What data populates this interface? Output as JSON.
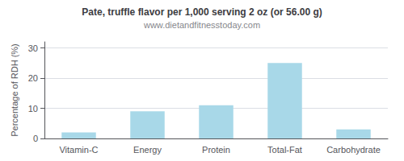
{
  "chart_data": {
    "type": "bar",
    "title": "Pate, truffle flavor per 1,000 serving 2 oz (or 56.00 g)",
    "subtitle": "www.dietandfitnesstoday.com",
    "categories": [
      "Vitamin-C",
      "Energy",
      "Protein",
      "Total-Fat",
      "Carbohydrate"
    ],
    "values": [
      2,
      9,
      11,
      25,
      3
    ],
    "color": "#a8d8e8",
    "ylabel": "Percentage of RDH (%)",
    "ylim": [
      0,
      32
    ],
    "yticks": [
      0,
      10,
      20,
      30
    ],
    "grid": true
  }
}
